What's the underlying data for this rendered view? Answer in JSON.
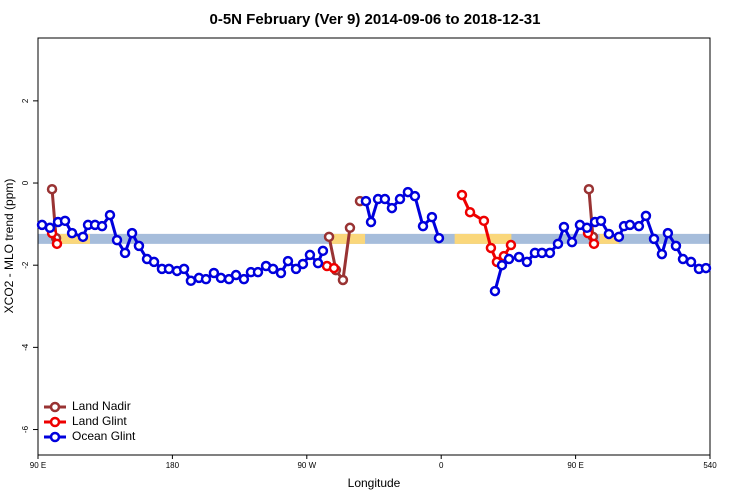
{
  "chart_data": {
    "type": "line",
    "title": "0-5N February (Ver 9)   2014-09-06 to 2018-12-31",
    "x_label": "Longitude",
    "y_label": "XCO2 - MLO trend (ppm)",
    "xlim": [
      90,
      540
    ],
    "ylim": [
      -6.62,
      3.53
    ],
    "xticks": [
      {
        "value": 90,
        "label": "90 E"
      },
      180,
      {
        "value": 270,
        "label": "90 W"
      },
      {
        "value": 360,
        "label": "0"
      },
      {
        "value": 450,
        "label": "90 E"
      },
      540
    ],
    "yticks": [
      -6,
      -4,
      -2,
      0,
      2
    ],
    "legend": "bottomleft",
    "reference_band": {
      "value": -1.36,
      "color": "#a6bddb"
    },
    "land_segments": {
      "color": "#fad77b",
      "ranges": [
        [
          104.7,
          124.8
        ],
        [
          285.5,
          309.0
        ],
        [
          369.0,
          407.0
        ],
        [
          466.0,
          479.0
        ]
      ]
    },
    "series": [
      {
        "name": "Land Nadir",
        "color": "#993333",
        "x": [
          99.4,
          102.1,
          null,
          284.9,
          289.5,
          294.2,
          298.9,
          null,
          305.6,
          null,
          458.9,
          461.6
        ],
        "values": [
          -0.15,
          -1.34,
          null,
          -1.31,
          -2.12,
          -2.36,
          -1.09,
          null,
          -0.44,
          null,
          -0.15,
          -1.31
        ]
      },
      {
        "name": "Land Glint",
        "color": "#ee0000",
        "x": [
          99.4,
          102.7,
          null,
          283.5,
          288.2,
          null,
          373.9,
          379.3,
          388.6,
          393.3,
          397.3,
          402.0,
          406.7,
          null,
          458.3,
          462.3
        ],
        "values": [
          -1.22,
          -1.48,
          null,
          -2.02,
          -2.07,
          null,
          -0.29,
          -0.71,
          -0.92,
          -1.58,
          -1.92,
          -1.78,
          -1.51,
          null,
          -1.22,
          -1.48
        ]
      },
      {
        "name": "Ocean Glint",
        "color": "#0000dd",
        "x": [
          92.7,
          98.0,
          103.4,
          108.1,
          112.8,
          120.1,
          123.5,
          128.2,
          132.9,
          138.2,
          142.9,
          148.3,
          153.0,
          157.6,
          163.0,
          167.7,
          173.0,
          177.7,
          183.1,
          187.8,
          192.4,
          197.8,
          202.5,
          207.8,
          212.5,
          217.9,
          222.6,
          227.9,
          232.6,
          237.3,
          242.7,
          247.4,
          252.7,
          257.4,
          262.8,
          267.4,
          272.1,
          277.5,
          280.8,
          null,
          309.6,
          313.0,
          317.7,
          322.3,
          327.0,
          332.4,
          337.7,
          342.4,
          347.8,
          353.8,
          358.5,
          null,
          396.0,
          400.7,
          405.4,
          412.1,
          417.4,
          422.8,
          427.5,
          432.8,
          438.2,
          442.2,
          447.6,
          452.9,
          457.6,
          463.0,
          467.0,
          472.3,
          479.0,
          482.4,
          486.4,
          492.4,
          497.1,
          502.5,
          507.8,
          511.8,
          517.2,
          521.9,
          527.3,
          532.6,
          537.3
        ],
        "values": [
          -1.02,
          -1.09,
          -0.95,
          -0.92,
          -1.22,
          -1.31,
          -1.02,
          -1.02,
          -1.05,
          -0.78,
          -1.39,
          -1.7,
          -1.22,
          -1.53,
          -1.85,
          -1.92,
          -2.09,
          -2.09,
          -2.14,
          -2.09,
          -2.38,
          -2.31,
          -2.34,
          -2.19,
          -2.31,
          -2.34,
          -2.24,
          -2.34,
          -2.17,
          -2.17,
          -2.02,
          -2.09,
          -2.19,
          -1.9,
          -2.09,
          -1.97,
          -1.75,
          -1.95,
          -1.65,
          null,
          -0.44,
          -0.95,
          -0.39,
          -0.39,
          -0.61,
          -0.39,
          -0.22,
          -0.32,
          -1.05,
          -0.83,
          -1.34,
          null,
          -2.63,
          -2.0,
          -1.85,
          -1.8,
          -1.92,
          -1.7,
          -1.7,
          -1.7,
          -1.48,
          -1.07,
          -1.44,
          -1.02,
          -1.09,
          -0.95,
          -0.92,
          -1.24,
          -1.31,
          -1.05,
          -1.02,
          -1.05,
          -0.8,
          -1.36,
          -1.73,
          -1.22,
          -1.53,
          -1.85,
          -1.92,
          -2.09,
          -2.07
        ]
      }
    ]
  }
}
